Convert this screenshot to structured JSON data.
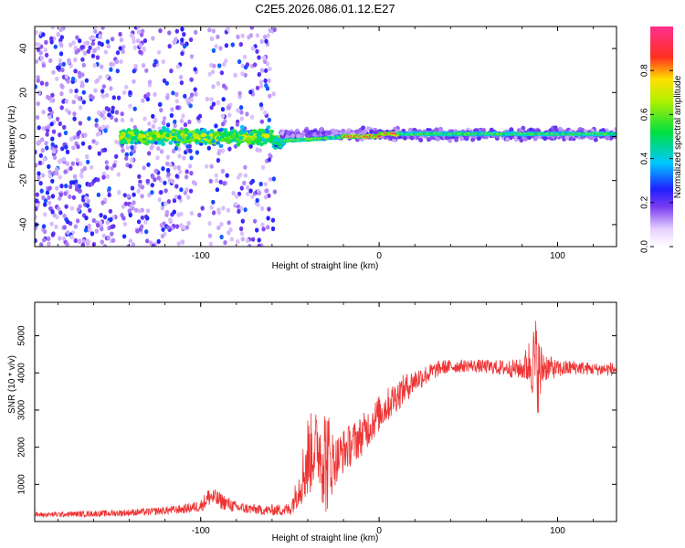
{
  "title": "C2E5.2026.086.01.12.E27",
  "chart_data": [
    {
      "type": "heatmap",
      "name": "spectrogram",
      "xlabel": "Height of straight line (km)",
      "ylabel": "Frequency (Hz)",
      "xlim": [
        -193,
        133
      ],
      "ylim": [
        -50,
        50
      ],
      "xticks": [
        -100,
        0,
        100
      ],
      "xtick_labels": [
        "-100",
        "0",
        "100"
      ],
      "yticks": [
        -40,
        -20,
        0,
        20,
        40
      ],
      "ytick_labels": [
        "-40",
        "-20",
        "0",
        "20",
        "40"
      ],
      "colorbar": {
        "label": "Normalized spectral amplitude",
        "range": [
          0,
          1
        ],
        "ticks": [
          0.0,
          0.2,
          0.4,
          0.6,
          0.8
        ],
        "tick_labels": [
          "0.0",
          "0.2",
          "0.4",
          "0.6",
          "0.8"
        ],
        "colormap": "rainbow (white-violet-blue-cyan-green-yellow-red-magenta)"
      },
      "description_regions": [
        {
          "x_range": [
            -193,
            -60
          ],
          "content": "broadband noise, amplitude 0.1-0.3 spread over all frequencies"
        },
        {
          "x_range": [
            -145,
            -55
          ],
          "content": "band near 0 Hz, amplitude 0.3-0.6, width about ±6 Hz"
        },
        {
          "x_range": [
            -55,
            133
          ],
          "content": "narrow line near 0 to +2 Hz, amplitude 0.5-1.0"
        }
      ]
    },
    {
      "type": "line",
      "name": "snr",
      "xlabel": "Height of straight line (km)",
      "ylabel": "SNR (10 * v/v)",
      "xlim": [
        -193,
        133
      ],
      "ylim": [
        0,
        5900
      ],
      "xticks": [
        -100,
        0,
        100
      ],
      "xtick_labels": [
        "-100",
        "0",
        "100"
      ],
      "yticks": [
        1000,
        2000,
        3000,
        4000,
        5000
      ],
      "ytick_labels": [
        "1000",
        "2000",
        "3000",
        "4000",
        "5000"
      ],
      "color": "#ee3333",
      "envelope": {
        "x": [
          -193,
          -170,
          -150,
          -130,
          -110,
          -100,
          -95,
          -80,
          -65,
          -50,
          -45,
          -40,
          -35,
          -30,
          -25,
          -20,
          -10,
          0,
          10,
          20,
          35,
          50,
          65,
          80,
          85,
          88,
          90,
          92,
          95,
          100,
          110,
          120,
          133
        ],
        "mean": [
          180,
          200,
          220,
          260,
          330,
          420,
          680,
          380,
          300,
          320,
          900,
          1700,
          2100,
          1700,
          1600,
          1900,
          2300,
          2900,
          3400,
          3800,
          4150,
          4200,
          4150,
          4100,
          4300,
          4250,
          3900,
          4200,
          4150,
          4100,
          4150,
          4100,
          4100
        ],
        "noise": [
          60,
          70,
          80,
          90,
          110,
          150,
          250,
          140,
          120,
          160,
          450,
          1100,
          800,
          1500,
          600,
          550,
          500,
          450,
          400,
          300,
          180,
          150,
          180,
          250,
          700,
          1200,
          900,
          450,
          300,
          220,
          180,
          150,
          180
        ]
      }
    }
  ]
}
